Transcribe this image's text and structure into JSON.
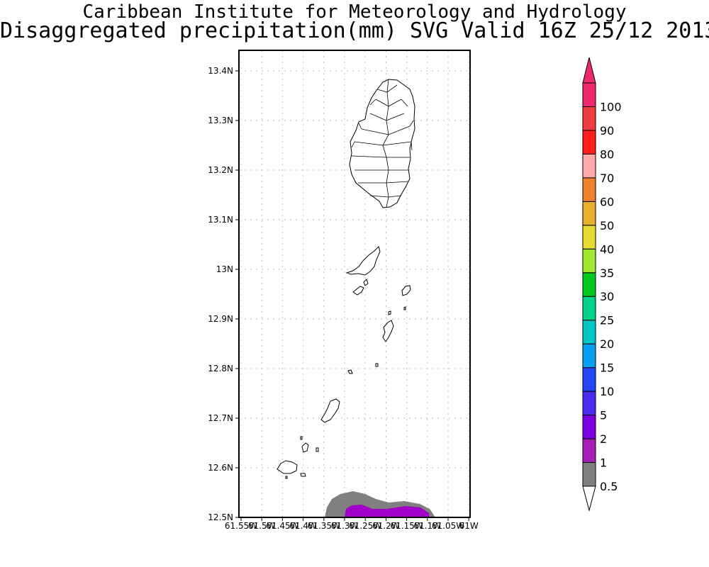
{
  "title": {
    "line1": "Caribbean Institute for Meteorology and Hydrology",
    "line2": "Disaggregated precipitation(mm) SVG Valid 16Z 25/12 2013"
  },
  "map": {
    "region": "St. Vincent and the Grenadines",
    "lon_range": [
      -61.55,
      -61.0
    ],
    "lat_range": [
      12.5,
      13.4
    ],
    "y_ticks": [
      "13.4N",
      "13.3N",
      "13.2N",
      "13.1N",
      "13N",
      "12.9N",
      "12.8N",
      "12.7N",
      "12.6N",
      "12.5N"
    ],
    "x_ticks": [
      "61.55W",
      "61.5W",
      "61.45W",
      "61.4W",
      "61.35W",
      "61.3W",
      "61.25W",
      "61.2W",
      "61.15W",
      "61.1W",
      "61.05W",
      "61W"
    ],
    "grid": "dotted"
  },
  "colorbar": {
    "levels": [
      "0.5",
      "1",
      "2",
      "5",
      "10",
      "15",
      "20",
      "25",
      "30",
      "35",
      "40",
      "50",
      "60",
      "70",
      "80",
      "90",
      "100"
    ],
    "colors": [
      "#7f7f7f",
      "#a61fb3",
      "#7a00e0",
      "#4a2cf0",
      "#2546f5",
      "#0aa0f0",
      "#00c6c6",
      "#00d28c",
      "#00c820",
      "#a0e632",
      "#e6dc32",
      "#e6af2d",
      "#f0822d",
      "#ffaaaa",
      "#ff1e1e",
      "#f03c3c",
      "#f0286e"
    ]
  },
  "precip": {
    "gray_color": "#808080",
    "purple_color": "#a000c8"
  }
}
